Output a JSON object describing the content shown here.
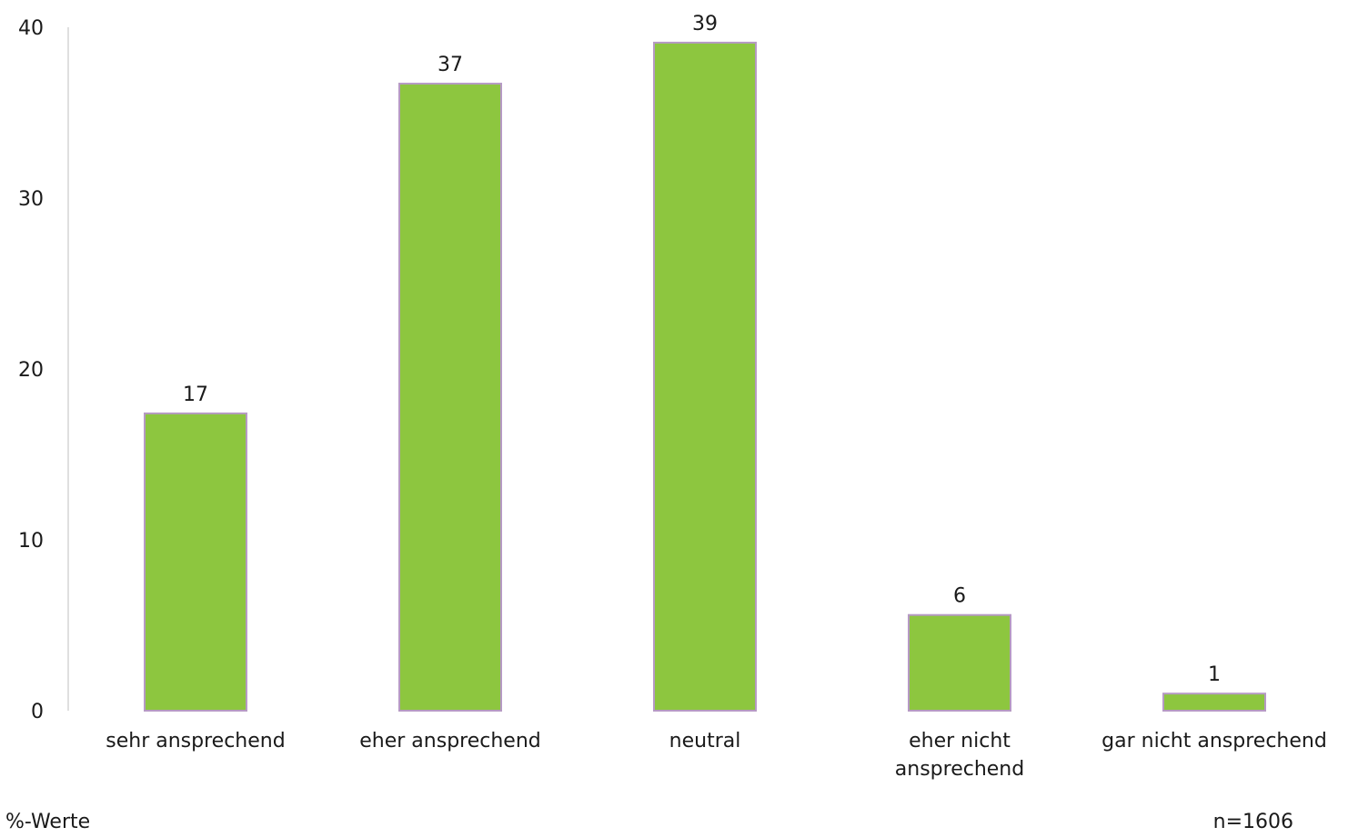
{
  "chart_data": {
    "type": "bar",
    "categories": [
      [
        "sehr ansprechend"
      ],
      [
        "eher ansprechend"
      ],
      [
        "neutral"
      ],
      [
        "eher nicht",
        "ansprechend"
      ],
      [
        "gar nicht ansprechend"
      ]
    ],
    "values": [
      17.4,
      36.7,
      39.1,
      5.6,
      1.0
    ],
    "data_labels": [
      "17",
      "37",
      "39",
      "6",
      "1"
    ],
    "ylim": [
      0,
      40
    ],
    "yticks": [
      0,
      10,
      20,
      30,
      40
    ],
    "grid": false,
    "legend": "none",
    "bar_color": "#8dc63f",
    "bar_edge_color": "#b69ac4"
  },
  "notes": {
    "unit": "%-Werte",
    "sample": "n=1606"
  }
}
